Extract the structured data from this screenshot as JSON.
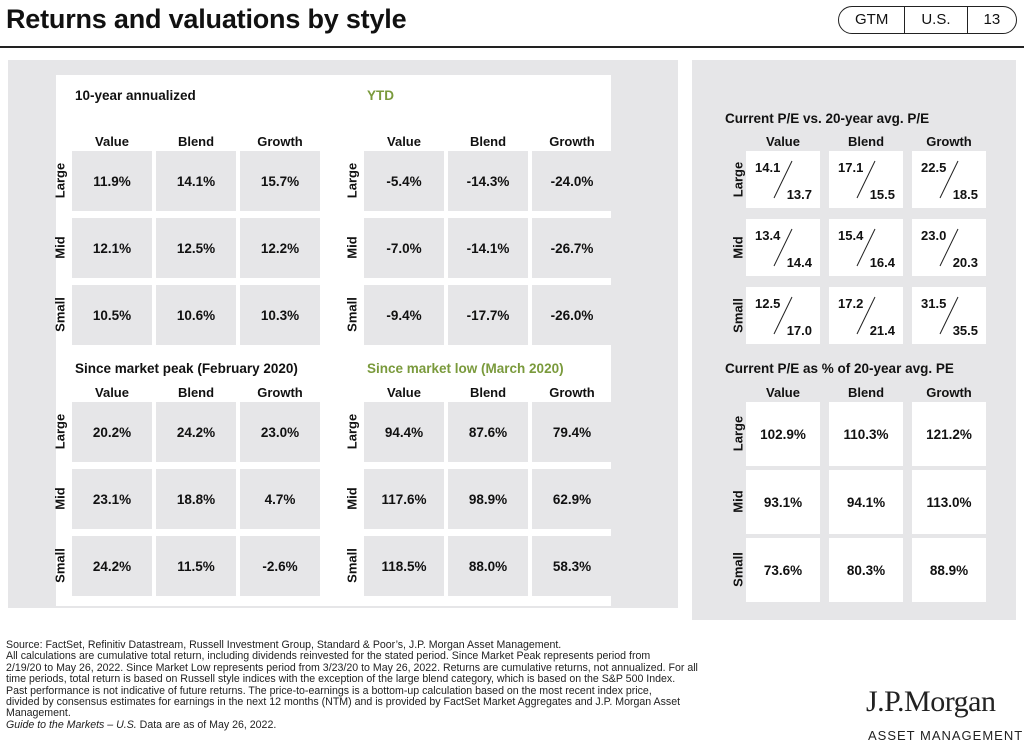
{
  "header": {
    "title": "Returns and valuations by style",
    "tags": [
      "GTM",
      "U.S.",
      "13"
    ]
  },
  "chart_data": [
    {
      "type": "table",
      "title": "10-year annualized",
      "columns": [
        "Value",
        "Blend",
        "Growth"
      ],
      "rows": [
        "Large",
        "Mid",
        "Small"
      ],
      "values": [
        [
          "11.9%",
          "14.1%",
          "15.7%"
        ],
        [
          "12.1%",
          "12.5%",
          "12.2%"
        ],
        [
          "10.5%",
          "10.6%",
          "10.3%"
        ]
      ]
    },
    {
      "type": "table",
      "title": "YTD",
      "title_color": "#7a9a3c",
      "columns": [
        "Value",
        "Blend",
        "Growth"
      ],
      "rows": [
        "Large",
        "Mid",
        "Small"
      ],
      "values": [
        [
          "-5.4%",
          "-14.3%",
          "-24.0%"
        ],
        [
          "-7.0%",
          "-14.1%",
          "-26.7%"
        ],
        [
          "-9.4%",
          "-17.7%",
          "-26.0%"
        ]
      ]
    },
    {
      "type": "table",
      "title": "Since market peak (February 2020)",
      "columns": [
        "Value",
        "Blend",
        "Growth"
      ],
      "rows": [
        "Large",
        "Mid",
        "Small"
      ],
      "values": [
        [
          "20.2%",
          "24.2%",
          "23.0%"
        ],
        [
          "23.1%",
          "18.8%",
          "4.7%"
        ],
        [
          "24.2%",
          "11.5%",
          "-2.6%"
        ]
      ]
    },
    {
      "type": "table",
      "title": "Since market low (March 2020)",
      "title_color": "#7a9a3c",
      "columns": [
        "Value",
        "Blend",
        "Growth"
      ],
      "rows": [
        "Large",
        "Mid",
        "Small"
      ],
      "values": [
        [
          "94.4%",
          "87.6%",
          "79.4%"
        ],
        [
          "117.6%",
          "98.9%",
          "62.9%"
        ],
        [
          "118.5%",
          "88.0%",
          "58.3%"
        ]
      ]
    },
    {
      "type": "table",
      "title": "Current P/E vs. 20-year avg. P/E",
      "columns": [
        "Value",
        "Blend",
        "Growth"
      ],
      "rows": [
        "Large",
        "Mid",
        "Small"
      ],
      "current": [
        [
          "14.1",
          "17.1",
          "22.5"
        ],
        [
          "13.4",
          "15.4",
          "23.0"
        ],
        [
          "12.5",
          "17.2",
          "31.5"
        ]
      ],
      "average": [
        [
          "13.7",
          "15.5",
          "18.5"
        ],
        [
          "14.4",
          "16.4",
          "20.3"
        ],
        [
          "17.0",
          "21.4",
          "35.5"
        ]
      ]
    },
    {
      "type": "table",
      "title": "Current P/E as % of 20-year avg. PE",
      "columns": [
        "Value",
        "Blend",
        "Growth"
      ],
      "rows": [
        "Large",
        "Mid",
        "Small"
      ],
      "values": [
        [
          "102.9%",
          "110.3%",
          "121.2%"
        ],
        [
          "93.1%",
          "94.1%",
          "113.0%"
        ],
        [
          "73.6%",
          "80.3%",
          "88.9%"
        ]
      ]
    }
  ],
  "footnote": {
    "lines": [
      "Source: FactSet, Refinitiv Datastream, Russell Investment Group, Standard & Poor’s, J.P. Morgan Asset Management.",
      "All calculations are cumulative total return, including dividends reinvested for the stated period. Since Market Peak represents period from",
      "2/19/20 to May 26, 2022. Since Market Low represents period from 3/23/20 to May 26, 2022. Returns are cumulative returns, not annualized. For all",
      "time periods, total return is based on Russell style indices with the exception of the large blend category, which is based on the S&P 500 Index.",
      "Past performance is not indicative of future returns. The price-to-earnings is a bottom-up calculation based on the most recent index price,",
      "divided by consensus estimates for earnings in the next 12 months (NTM) and is provided by FactSet Market Aggregates and J.P. Morgan Asset",
      "Management."
    ],
    "guide_italic": "Guide to the Markets – U.S.",
    "guide_rest": " Data are as of May 26, 2022."
  },
  "branding": {
    "logo": "J.P.Morgan",
    "sub": "ASSET MANAGEMENT"
  }
}
